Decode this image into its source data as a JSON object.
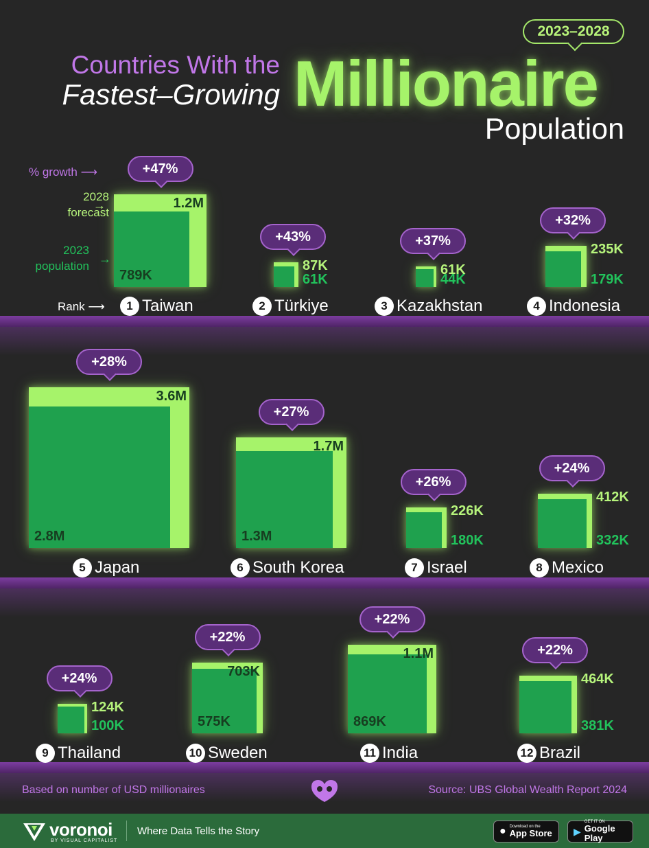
{
  "header": {
    "year_range": "2023–2028",
    "title_line1": "Countries With the",
    "title_line2": "Fastest–Growing",
    "title_big": "Millionaire",
    "title_line3": "Population"
  },
  "legend": {
    "growth": "% growth",
    "forecast_line1": "2028",
    "forecast_line2": "forecast",
    "population_line1": "2023",
    "population_line2": "population",
    "rank": "Rank"
  },
  "chart_data": {
    "type": "square-area-comparison",
    "units": "number of USD millionaires",
    "series": [
      {
        "name": "2023 population"
      },
      {
        "name": "2028 forecast"
      }
    ],
    "items": [
      {
        "rank": 1,
        "country": "Taiwan",
        "growth": "+47%",
        "y2023": 789000,
        "y2028": 1200000,
        "l2023": "789K",
        "l2028": "1.2M"
      },
      {
        "rank": 2,
        "country": "Türkiye",
        "growth": "+43%",
        "y2023": 61000,
        "y2028": 87000,
        "l2023": "61K",
        "l2028": "87K"
      },
      {
        "rank": 3,
        "country": "Kazakhstan",
        "growth": "+37%",
        "y2023": 44000,
        "y2028": 61000,
        "l2023": "44K",
        "l2028": "61K"
      },
      {
        "rank": 4,
        "country": "Indonesia",
        "growth": "+32%",
        "y2023": 179000,
        "y2028": 235000,
        "l2023": "179K",
        "l2028": "235K"
      },
      {
        "rank": 5,
        "country": "Japan",
        "growth": "+28%",
        "y2023": 2800000,
        "y2028": 3600000,
        "l2023": "2.8M",
        "l2028": "3.6M"
      },
      {
        "rank": 6,
        "country": "South Korea",
        "growth": "+27%",
        "y2023": 1300000,
        "y2028": 1700000,
        "l2023": "1.3M",
        "l2028": "1.7M"
      },
      {
        "rank": 7,
        "country": "Israel",
        "growth": "+26%",
        "y2023": 180000,
        "y2028": 226000,
        "l2023": "180K",
        "l2028": "226K"
      },
      {
        "rank": 8,
        "country": "Mexico",
        "growth": "+24%",
        "y2023": 332000,
        "y2028": 412000,
        "l2023": "332K",
        "l2028": "412K"
      },
      {
        "rank": 9,
        "country": "Thailand",
        "growth": "+24%",
        "y2023": 100000,
        "y2028": 124000,
        "l2023": "100K",
        "l2028": "124K"
      },
      {
        "rank": 10,
        "country": "Sweden",
        "growth": "+22%",
        "y2023": 575000,
        "y2028": 703000,
        "l2023": "575K",
        "l2028": "703K"
      },
      {
        "rank": 11,
        "country": "India",
        "growth": "+22%",
        "y2023": 869000,
        "y2028": 1100000,
        "l2023": "869K",
        "l2028": "1.1M"
      },
      {
        "rank": 12,
        "country": "Brazil",
        "growth": "+22%",
        "y2023": 381000,
        "y2028": 464000,
        "l2023": "381K",
        "l2028": "464K"
      }
    ]
  },
  "footer": {
    "note": "Based on number of USD millionaires",
    "source": "Source: UBS Global Wealth Report 2024",
    "brand": "voronoi",
    "brand_sub": "BY VISUAL CAPITALIST",
    "tagline": "Where Data Tells the Story",
    "app_store_small": "Download on the",
    "app_store_big": "App Store",
    "google_small": "GET IT ON",
    "google_big": "Google Play"
  },
  "colors": {
    "background": "#262626",
    "forecast_2028": "#a6f36a",
    "population_2023": "#1fa14e",
    "accent_purple": "#c177e8",
    "bubble": "#5a2d78"
  }
}
